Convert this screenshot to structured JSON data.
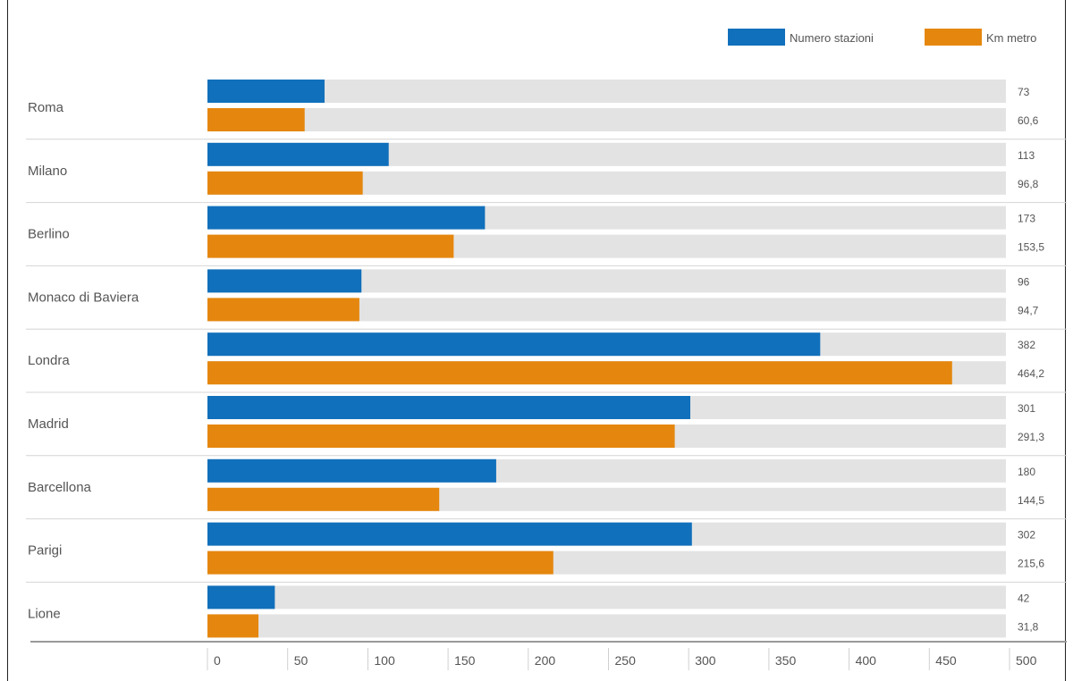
{
  "chart_data": {
    "type": "bar",
    "orientation": "horizontal",
    "categories": [
      "Roma",
      "Milano",
      "Berlino",
      "Monaco di Baviera",
      "Londra",
      "Madrid",
      "Barcellona",
      "Parigi",
      "Lione"
    ],
    "series": [
      {
        "name": "Numero stazioni",
        "color": "#1170bb",
        "values": [
          73,
          113,
          173,
          96,
          382,
          301,
          180,
          302,
          42
        ],
        "labels": [
          "73",
          "113",
          "173",
          "96",
          "382",
          "301",
          "180",
          "302",
          "42"
        ]
      },
      {
        "name": "Km metro",
        "color": "#e5870f",
        "values": [
          60.6,
          96.8,
          153.5,
          94.7,
          464.2,
          291.3,
          144.5,
          215.6,
          31.8
        ],
        "labels": [
          "60,6",
          "96,8",
          "153,5",
          "94,7",
          "464,2",
          "291,3",
          "144,5",
          "215,6",
          "31,8"
        ]
      }
    ],
    "xlim": [
      0,
      500
    ],
    "xticks": [
      "0",
      "50",
      "100",
      "150",
      "200",
      "250",
      "300",
      "350",
      "400",
      "450",
      "500"
    ],
    "track_color": "#e3e3e3",
    "grid": false,
    "legend_position": "top-right"
  }
}
